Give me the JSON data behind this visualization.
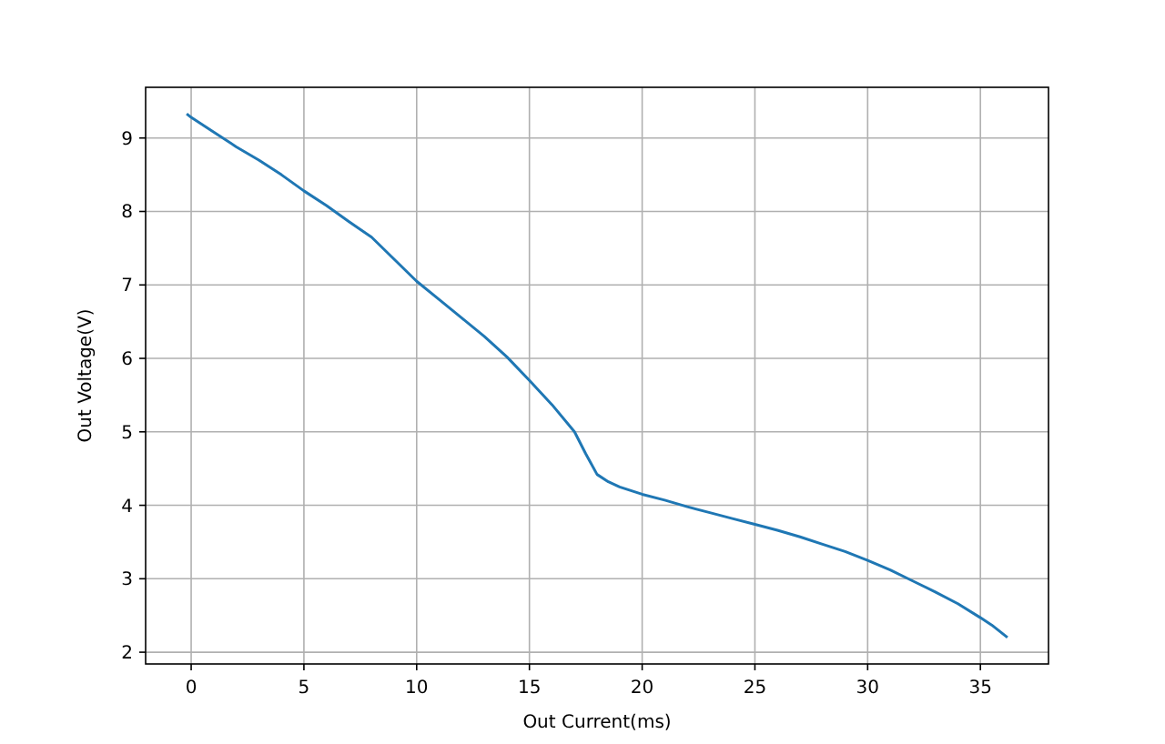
{
  "chart_data": {
    "type": "line",
    "xlabel": "Out Current(ms)",
    "ylabel": "Out Voltage(V)",
    "x": [
      -0.2,
      0,
      1,
      2,
      3,
      4,
      5,
      6,
      7,
      8,
      9,
      10,
      11,
      12,
      13,
      14,
      15,
      16,
      17,
      17.5,
      18,
      18.5,
      19,
      20,
      21,
      22,
      23,
      24,
      25,
      26,
      27,
      28,
      29,
      30,
      31,
      32,
      33,
      34,
      35,
      35.5,
      36.2
    ],
    "series": [
      {
        "color": "#1f77b4",
        "values": [
          9.33,
          9.28,
          9.08,
          8.88,
          8.7,
          8.5,
          8.28,
          8.08,
          7.86,
          7.65,
          7.35,
          7.05,
          6.8,
          6.55,
          6.3,
          6.02,
          5.7,
          5.37,
          5.0,
          4.7,
          4.42,
          4.32,
          4.25,
          4.15,
          4.07,
          3.98,
          3.9,
          3.82,
          3.74,
          3.66,
          3.57,
          3.47,
          3.37,
          3.25,
          3.12,
          2.97,
          2.82,
          2.66,
          2.47,
          2.37,
          2.2
        ]
      }
    ],
    "xlim": [
      -2.02,
      38.02
    ],
    "ylim": [
      1.84,
      9.69
    ],
    "xticks": [
      0,
      5,
      10,
      15,
      20,
      25,
      30,
      35
    ],
    "yticks": [
      2,
      3,
      4,
      5,
      6,
      7,
      8,
      9
    ],
    "grid": true
  }
}
